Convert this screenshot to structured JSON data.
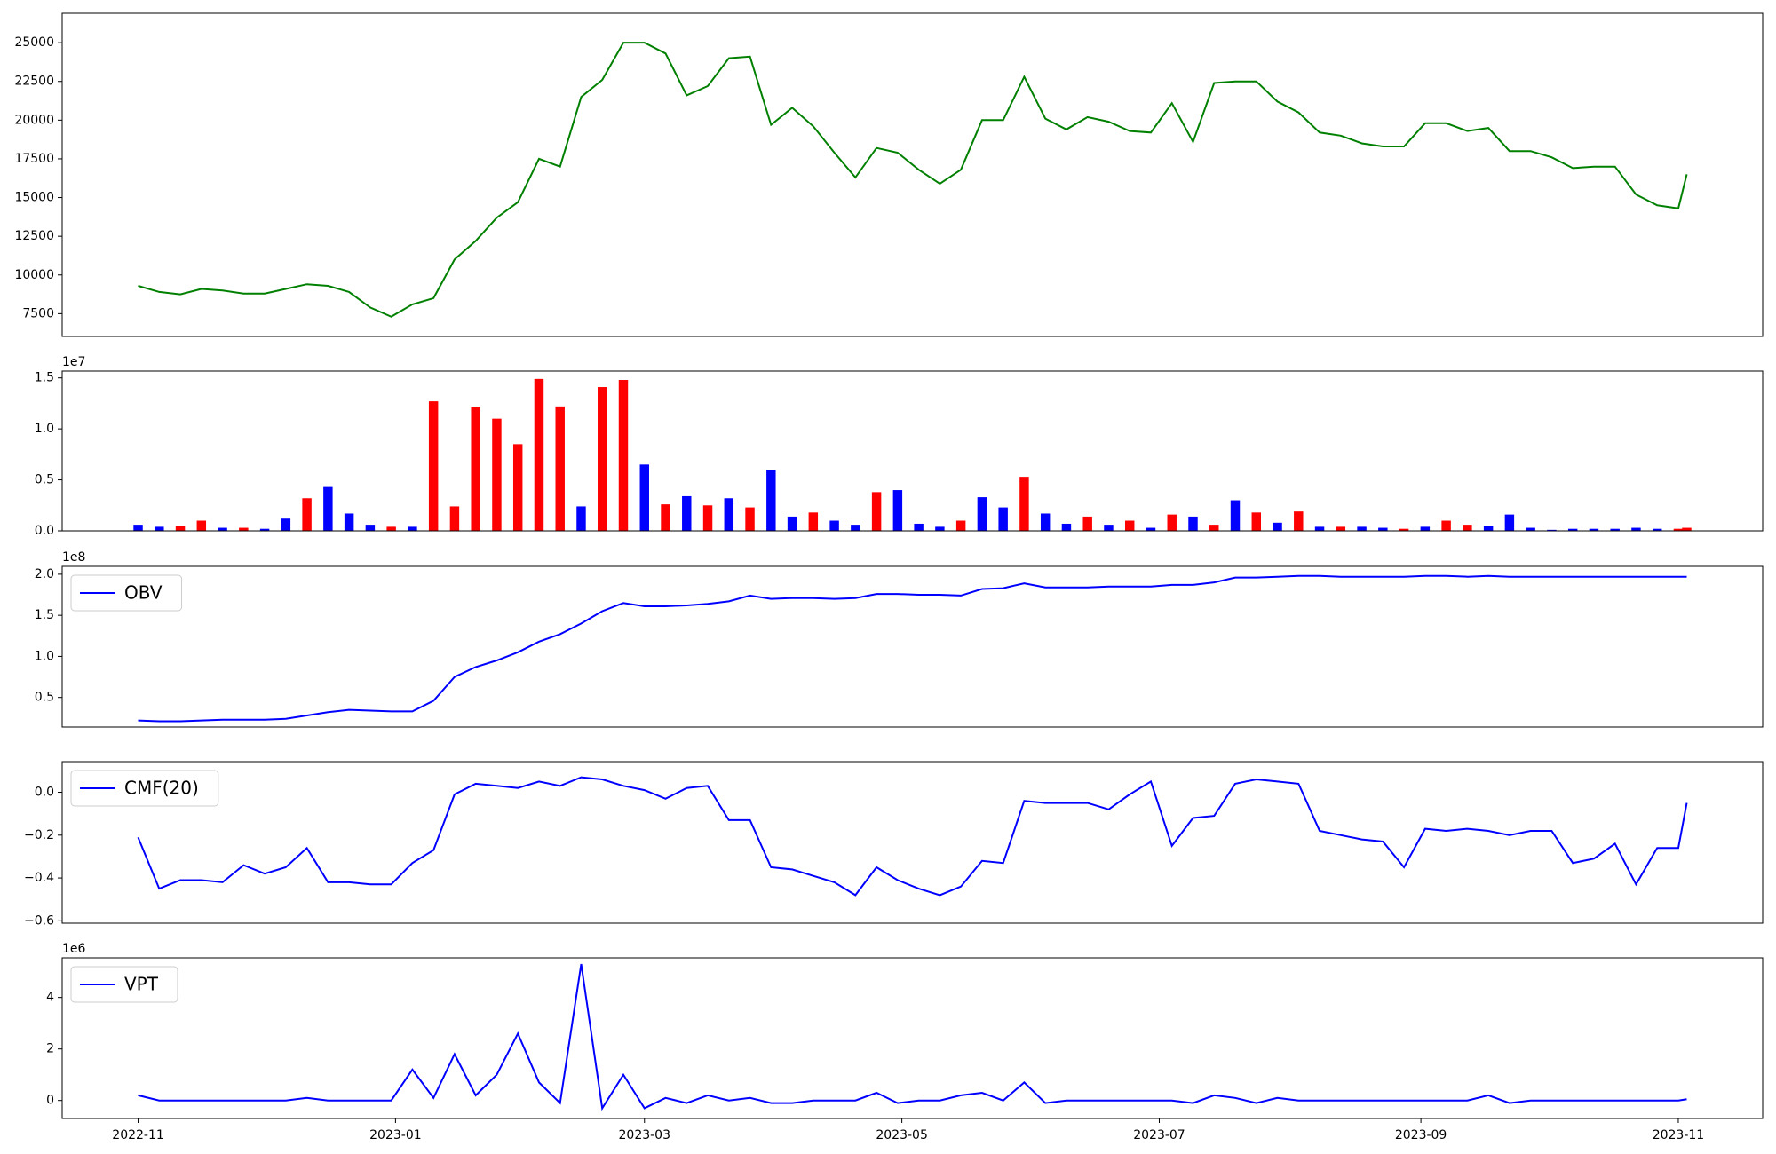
{
  "chart_data": [
    {
      "type": "line",
      "color": "green",
      "x": [
        0,
        5,
        10,
        15,
        20,
        25,
        30,
        35,
        40,
        45,
        50,
        55,
        60,
        65,
        70,
        75,
        80,
        85,
        90,
        95,
        100,
        105,
        110,
        115,
        120,
        125,
        130,
        135,
        140,
        145,
        150,
        155,
        160,
        165,
        170,
        175,
        180,
        185,
        190,
        195,
        200,
        205,
        210,
        215,
        220,
        225,
        230,
        235,
        240,
        245,
        250,
        255,
        260,
        265,
        270,
        275,
        280,
        285,
        290,
        295,
        300,
        305,
        310,
        315,
        320,
        325,
        330,
        335,
        340,
        345,
        350,
        355,
        360,
        365,
        367
      ],
      "values": [
        9300,
        8900,
        8750,
        9100,
        9000,
        8800,
        8800,
        9100,
        9400,
        9300,
        8900,
        7900,
        7300,
        8100,
        8500,
        11000,
        12200,
        13700,
        14700,
        17500,
        17000,
        21500,
        22600,
        25000,
        25000,
        24300,
        21600,
        22200,
        24000,
        24100,
        19700,
        20800,
        19600,
        17900,
        16300,
        18200,
        17900,
        16800,
        15900,
        16800,
        20000,
        20000,
        22800,
        20100,
        19400,
        20200,
        19900,
        19300,
        19200,
        21100,
        18600,
        22400,
        22500,
        22500,
        21200,
        20500,
        19200,
        19000,
        18500,
        18300,
        18300,
        19800,
        19800,
        19300,
        19500,
        18000,
        18000,
        17600,
        16900,
        17000,
        17000,
        15200,
        14500,
        14300,
        16500
      ],
      "xlim": [
        -18,
        385
      ],
      "ylim": [
        6030,
        26900
      ],
      "yticks": [
        7500,
        10000,
        12500,
        15000,
        17500,
        20000,
        22500,
        25000
      ]
    },
    {
      "type": "bar",
      "offset_text": "1e7",
      "x": [
        0,
        5,
        10,
        15,
        20,
        25,
        30,
        35,
        40,
        45,
        50,
        55,
        60,
        65,
        70,
        75,
        80,
        85,
        90,
        95,
        100,
        105,
        110,
        115,
        120,
        125,
        130,
        135,
        140,
        145,
        150,
        155,
        160,
        165,
        170,
        175,
        180,
        185,
        190,
        195,
        200,
        205,
        210,
        215,
        220,
        225,
        230,
        235,
        240,
        245,
        250,
        255,
        260,
        265,
        270,
        275,
        280,
        285,
        290,
        295,
        300,
        305,
        310,
        315,
        320,
        325,
        330,
        335,
        340,
        345,
        350,
        355,
        360,
        365,
        367
      ],
      "values": [
        600000,
        400000,
        500000,
        1000000,
        300000,
        300000,
        200000,
        1200000,
        3200000,
        4300000,
        1700000,
        600000,
        400000,
        400000,
        12700000,
        2400000,
        12100000,
        11000000,
        8500000,
        14900000,
        12200000,
        2400000,
        14100000,
        14800000,
        6500000,
        2600000,
        3400000,
        2500000,
        3200000,
        2300000,
        6000000,
        1400000,
        1800000,
        1000000,
        600000,
        3800000,
        4000000,
        700000,
        400000,
        1000000,
        3300000,
        2300000,
        5300000,
        1700000,
        700000,
        1400000,
        600000,
        1000000,
        300000,
        1600000,
        1400000,
        600000,
        3000000,
        1800000,
        800000,
        1900000,
        400000,
        400000,
        400000,
        300000,
        200000,
        400000,
        1000000,
        600000,
        500000,
        1600000,
        300000,
        100000,
        200000,
        200000,
        200000,
        300000,
        200000,
        200000,
        300000
      ],
      "colors": [
        "blue",
        "blue",
        "red",
        "red",
        "blue",
        "red",
        "blue",
        "blue",
        "red",
        "blue",
        "blue",
        "blue",
        "red",
        "blue",
        "red",
        "red",
        "red",
        "red",
        "red",
        "red",
        "red",
        "blue",
        "red",
        "red",
        "blue",
        "red",
        "blue",
        "red",
        "blue",
        "red",
        "blue",
        "blue",
        "red",
        "blue",
        "blue",
        "red",
        "blue",
        "blue",
        "blue",
        "red",
        "blue",
        "blue",
        "red",
        "blue",
        "blue",
        "red",
        "blue",
        "red",
        "blue",
        "red",
        "blue",
        "red",
        "blue",
        "red",
        "blue",
        "red",
        "blue",
        "red",
        "blue",
        "blue",
        "red",
        "blue",
        "red",
        "red",
        "blue",
        "blue",
        "blue",
        "blue",
        "blue",
        "blue",
        "blue",
        "blue",
        "blue",
        "red",
        "red"
      ],
      "xlim": [
        -18,
        385
      ],
      "ylim": [
        0,
        15670000
      ],
      "yticks": [
        {
          "value": 0,
          "label": "0.0"
        },
        {
          "value": 5000000,
          "label": "0.5"
        },
        {
          "value": 10000000,
          "label": "1.0"
        },
        {
          "value": 15000000,
          "label": "1.5"
        }
      ]
    },
    {
      "type": "line",
      "offset_text": "1e8",
      "legend": "upper left",
      "x": [
        0,
        5,
        10,
        15,
        20,
        25,
        30,
        35,
        40,
        45,
        50,
        55,
        60,
        65,
        70,
        75,
        80,
        85,
        90,
        95,
        100,
        105,
        110,
        115,
        120,
        125,
        130,
        135,
        140,
        145,
        150,
        155,
        160,
        165,
        170,
        175,
        180,
        185,
        190,
        195,
        200,
        205,
        210,
        215,
        220,
        225,
        230,
        235,
        240,
        245,
        250,
        255,
        260,
        265,
        270,
        275,
        280,
        285,
        290,
        295,
        300,
        305,
        310,
        315,
        320,
        325,
        330,
        335,
        340,
        345,
        350,
        355,
        360,
        365,
        367
      ],
      "series": [
        {
          "name": "OBV",
          "color": "blue",
          "values": [
            22000000,
            21000000,
            21000000,
            22000000,
            23000000,
            23000000,
            23000000,
            24000000,
            28000000,
            32000000,
            35000000,
            34000000,
            33000000,
            33000000,
            46000000,
            75000000,
            87000000,
            95000000,
            105000000,
            118000000,
            127000000,
            140000000,
            155000000,
            165000000,
            161000000,
            161000000,
            162000000,
            164000000,
            167000000,
            174000000,
            170000000,
            171000000,
            171000000,
            170000000,
            171000000,
            176000000,
            176000000,
            175000000,
            175000000,
            174000000,
            182000000,
            183000000,
            189000000,
            184000000,
            184000000,
            184000000,
            185000000,
            185000000,
            185000000,
            187000000,
            187000000,
            190000000,
            196000000,
            196000000,
            197000000,
            198000000,
            198000000,
            197000000,
            197000000,
            197000000,
            197000000,
            198000000,
            198000000,
            197000000,
            198000000,
            197000000,
            197000000,
            197000000,
            197000000,
            197000000,
            197000000,
            197000000,
            197000000,
            197000000,
            197000000
          ]
        }
      ],
      "xlim": [
        -18,
        385
      ],
      "ylim": [
        14000000,
        209600000
      ],
      "yticks": [
        {
          "value": 50000000,
          "label": "0.5"
        },
        {
          "value": 100000000,
          "label": "1.0"
        },
        {
          "value": 150000000,
          "label": "1.5"
        },
        {
          "value": 200000000,
          "label": "2.0"
        }
      ]
    },
    {
      "type": "line",
      "legend": "upper left",
      "x": [
        0,
        5,
        10,
        15,
        20,
        25,
        30,
        35,
        40,
        45,
        50,
        55,
        60,
        65,
        70,
        75,
        80,
        85,
        90,
        95,
        100,
        105,
        110,
        115,
        120,
        125,
        130,
        135,
        140,
        145,
        150,
        155,
        160,
        165,
        170,
        175,
        180,
        185,
        190,
        195,
        200,
        205,
        210,
        215,
        220,
        225,
        230,
        235,
        240,
        245,
        250,
        255,
        260,
        265,
        270,
        275,
        280,
        285,
        290,
        295,
        300,
        305,
        310,
        315,
        320,
        325,
        330,
        335,
        340,
        345,
        350,
        355,
        360,
        365,
        367
      ],
      "series": [
        {
          "name": "CMF(20)",
          "color": "blue",
          "values": [
            -0.21,
            -0.45,
            -0.41,
            -0.41,
            -0.42,
            -0.34,
            -0.38,
            -0.35,
            -0.26,
            -0.42,
            -0.42,
            -0.43,
            -0.43,
            -0.33,
            -0.27,
            -0.01,
            0.04,
            0.03,
            0.02,
            0.05,
            0.03,
            0.07,
            0.06,
            0.03,
            0.01,
            -0.03,
            0.02,
            0.03,
            -0.13,
            -0.13,
            -0.35,
            -0.36,
            -0.39,
            -0.42,
            -0.48,
            -0.35,
            -0.41,
            -0.45,
            -0.48,
            -0.44,
            -0.32,
            -0.33,
            -0.04,
            -0.05,
            -0.05,
            -0.05,
            -0.08,
            -0.01,
            0.05,
            -0.25,
            -0.12,
            -0.11,
            0.04,
            0.06,
            0.05,
            0.04,
            -0.18,
            -0.2,
            -0.22,
            -0.23,
            -0.35,
            -0.17,
            -0.18,
            -0.17,
            -0.18,
            -0.2,
            -0.18,
            -0.18,
            -0.33,
            -0.31,
            -0.24,
            -0.43,
            -0.26,
            -0.26,
            -0.05
          ]
        }
      ],
      "xlim": [
        -18,
        385
      ],
      "ylim": [
        -0.611,
        0.143
      ],
      "yticks": [
        {
          "value": -0.6,
          "label": "−0.6"
        },
        {
          "value": -0.4,
          "label": "−0.4"
        },
        {
          "value": -0.2,
          "label": "−0.2"
        },
        {
          "value": 0,
          "label": "0.0"
        }
      ]
    },
    {
      "type": "line",
      "offset_text": "1e6",
      "legend": "upper left",
      "x": [
        0,
        5,
        10,
        15,
        20,
        25,
        30,
        35,
        40,
        45,
        50,
        55,
        60,
        65,
        70,
        75,
        80,
        85,
        90,
        95,
        100,
        105,
        110,
        115,
        120,
        125,
        130,
        135,
        140,
        145,
        150,
        155,
        160,
        165,
        170,
        175,
        180,
        185,
        190,
        195,
        200,
        205,
        210,
        215,
        220,
        225,
        230,
        235,
        240,
        245,
        250,
        255,
        260,
        265,
        270,
        275,
        280,
        285,
        290,
        295,
        300,
        305,
        310,
        315,
        320,
        325,
        330,
        335,
        340,
        345,
        350,
        355,
        360,
        365,
        367
      ],
      "series": [
        {
          "name": "VPT",
          "color": "blue",
          "values": [
            200000,
            0,
            0,
            0,
            0,
            0,
            0,
            0,
            100000,
            0,
            0,
            0,
            0,
            1200000,
            100000,
            1800000,
            200000,
            1000000,
            2600000,
            700000,
            -100000,
            5300000,
            -300000,
            1000000,
            -300000,
            100000,
            -100000,
            200000,
            0,
            100000,
            -100000,
            -100000,
            0,
            0,
            0,
            300000,
            -100000,
            0,
            0,
            200000,
            300000,
            0,
            700000,
            -100000,
            0,
            0,
            0,
            0,
            0,
            0,
            -100000,
            200000,
            100000,
            -100000,
            100000,
            0,
            0,
            0,
            0,
            0,
            0,
            0,
            0,
            0,
            200000,
            -100000,
            0,
            0,
            0,
            0,
            0,
            0,
            0,
            0,
            50000
          ]
        }
      ],
      "xlim": [
        -18,
        385
      ],
      "ylim": [
        -700000,
        5540000
      ],
      "yticks": [
        0,
        {
          "value": 2000000,
          "label": "2"
        },
        {
          "value": 4000000,
          "label": "4"
        }
      ],
      "xticks": [
        {
          "value": 0,
          "label": "2022-11"
        },
        {
          "value": 61,
          "label": "2023-01"
        },
        {
          "value": 120,
          "label": "2023-03"
        },
        {
          "value": 181,
          "label": "2023-05"
        },
        {
          "value": 242,
          "label": "2023-07"
        },
        {
          "value": 304,
          "label": "2023-09"
        },
        {
          "value": 365,
          "label": "2023-11"
        }
      ]
    }
  ]
}
